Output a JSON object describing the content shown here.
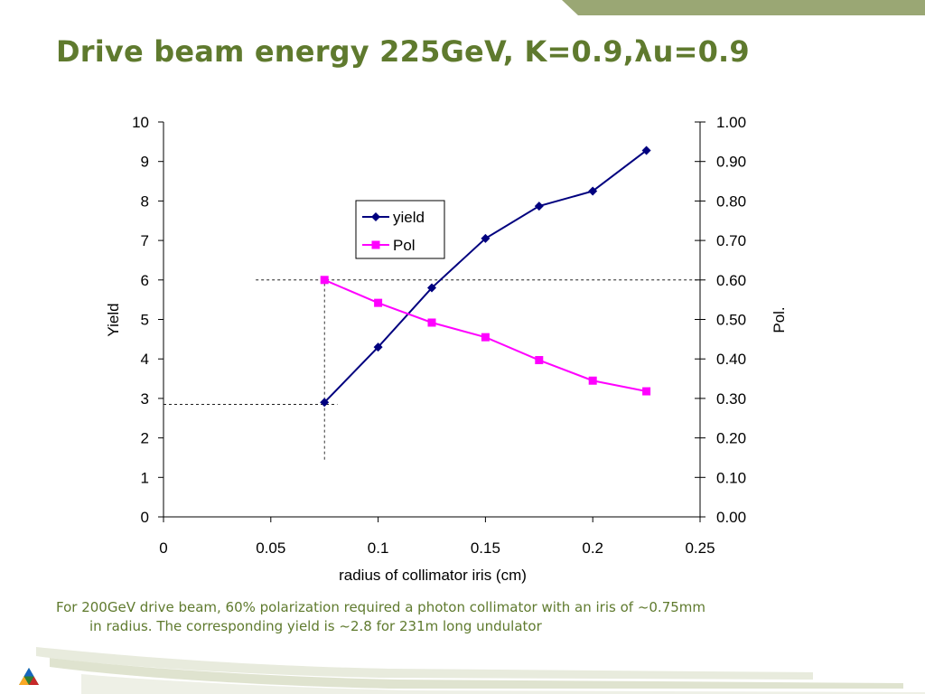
{
  "slide": {
    "title": "Drive beam energy 225GeV, K=0.9,λu=0.9",
    "caption_line1": "For 200GeV drive beam, 60% polarization required a photon collimator with an iris of ~0.75mm",
    "caption_line2": "in radius.  The corresponding yield is ~2.8 for 231m long undulator"
  },
  "colors": {
    "title": "#5f7a2e",
    "accent_bar": "#9aa774",
    "yield_series": "#00007f",
    "pol_series": "#ff00ff"
  },
  "chart_data": {
    "type": "line",
    "title": "",
    "xlabel": "radius of collimator iris (cm)",
    "ylabel": "Yield",
    "y2label": "Pol.",
    "xlim": [
      0,
      0.25
    ],
    "ylim": [
      0,
      10
    ],
    "y2lim": [
      0,
      1
    ],
    "x_ticks": [
      "0",
      "0.05",
      "0.1",
      "0.15",
      "0.2",
      "0.25"
    ],
    "y_ticks": [
      "0",
      "1",
      "2",
      "3",
      "4",
      "5",
      "6",
      "7",
      "8",
      "9",
      "10"
    ],
    "y2_ticks": [
      "0.00",
      "0.10",
      "0.20",
      "0.30",
      "0.40",
      "0.50",
      "0.60",
      "0.70",
      "0.80",
      "0.90",
      "1.00"
    ],
    "grid": false,
    "legend": "upper-center",
    "series": [
      {
        "name": "yield",
        "axis": "left",
        "marker": "diamond",
        "x": [
          0.075,
          0.1,
          0.125,
          0.15,
          0.175,
          0.2,
          0.225
        ],
        "values": [
          2.9,
          4.3,
          5.8,
          7.05,
          7.87,
          8.25,
          9.28
        ]
      },
      {
        "name": "Pol",
        "axis": "right",
        "marker": "square",
        "x": [
          0.075,
          0.1,
          0.125,
          0.15,
          0.175,
          0.2,
          0.225
        ],
        "values": [
          0.6,
          0.542,
          0.492,
          0.455,
          0.397,
          0.345,
          0.318
        ]
      }
    ],
    "reference_lines": [
      {
        "orientation": "horizontal",
        "axis": "right",
        "value": 0.6,
        "x_from": 0.043,
        "x_to": 0.25
      },
      {
        "orientation": "horizontal",
        "axis": "left",
        "value": 2.85,
        "x_from": 0,
        "x_to": 0.081
      },
      {
        "orientation": "vertical",
        "value": 0.075,
        "y_from": 1.45,
        "y_to": 6.0
      }
    ]
  }
}
